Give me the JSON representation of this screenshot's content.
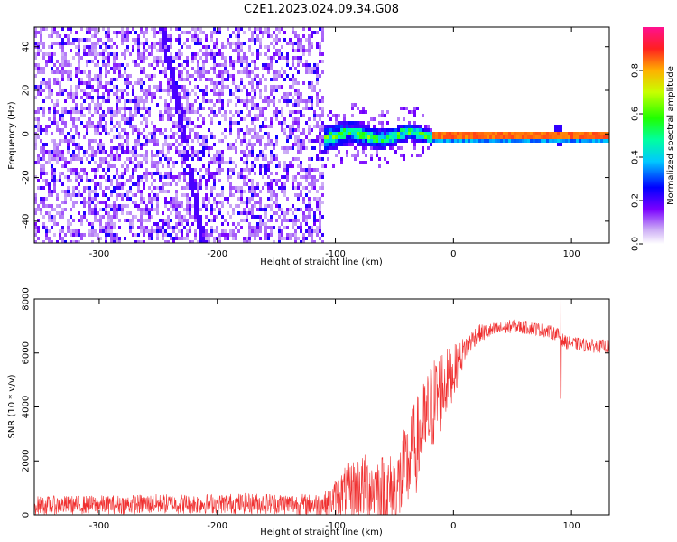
{
  "title": "C2E1.2023.024.09.34.G08",
  "chart_data": [
    {
      "type": "heatmap",
      "xlabel": "Height of straight line (km)",
      "ylabel": "Frequency (Hz)",
      "xlim": [
        -355,
        132
      ],
      "ylim": [
        -50,
        49
      ],
      "xticks": [
        -300,
        -200,
        -100,
        0,
        100
      ],
      "xtick_labels": [
        "-300",
        "-200",
        "-100",
        "0",
        "100"
      ],
      "yticks": [
        -40,
        -20,
        0,
        20,
        40
      ],
      "ytick_labels": [
        "-40",
        "-20",
        "0",
        "20",
        "40"
      ],
      "colorbar": {
        "label": "Normalized spectral amplitude",
        "range": [
          0,
          1
        ],
        "ticks": [
          0.0,
          0.2,
          0.4,
          0.6,
          0.8
        ],
        "tick_labels": [
          "0.0",
          "0.2",
          "0.4",
          "0.6",
          "0.8"
        ]
      },
      "description_regions": [
        {
          "x_range": [
            -355,
            -110
          ],
          "frequency_spread": [
            -50,
            49
          ],
          "amplitude": 0.1
        },
        {
          "x_range": [
            -110,
            -20
          ],
          "frequency_center": 0,
          "frequency_halfwidth": 6,
          "amplitude": 0.35
        },
        {
          "x_range": [
            -20,
            132
          ],
          "frequency_center": 0,
          "frequency_halfwidth": 1,
          "amplitude": 0.85
        }
      ]
    },
    {
      "type": "line",
      "xlabel": "Height of straight line (km)",
      "ylabel": "SNR (10 * v/v)",
      "xlim": [
        -355,
        132
      ],
      "ylim": [
        0,
        8000
      ],
      "xticks": [
        -300,
        -200,
        -100,
        0,
        100
      ],
      "xtick_labels": [
        "-300",
        "-200",
        "-100",
        "0",
        "100"
      ],
      "yticks": [
        0,
        2000,
        4000,
        6000,
        8000
      ],
      "ytick_labels": [
        "0",
        "2000",
        "4000",
        "6000",
        "8000"
      ],
      "series": [
        {
          "color": "#f03030",
          "x": [
            -355,
            -300,
            -250,
            -200,
            -150,
            -120,
            -105,
            -100,
            -90,
            -80,
            -70,
            -60,
            -50,
            -45,
            -40,
            -35,
            -30,
            -25,
            -20,
            -15,
            -10,
            -5,
            0,
            5,
            10,
            20,
            30,
            40,
            50,
            60,
            70,
            80,
            88,
            92,
            95,
            100,
            110,
            120,
            132
          ],
          "y": [
            350,
            380,
            400,
            420,
            420,
            380,
            450,
            650,
            900,
            1050,
            1000,
            900,
            800,
            1200,
            1700,
            2200,
            2700,
            3200,
            3800,
            4300,
            4700,
            5000,
            5300,
            5700,
            6200,
            6700,
            6800,
            6900,
            7000,
            6950,
            6900,
            6800,
            6700,
            6500,
            6400,
            6350,
            6300,
            6250,
            6250
          ],
          "noise": [
            350,
            350,
            380,
            380,
            400,
            400,
            500,
            700,
            1000,
            1200,
            1300,
            1400,
            1500,
            1600,
            1700,
            1800,
            1800,
            1800,
            1800,
            1700,
            1600,
            1200,
            1000,
            700,
            500,
            350,
            300,
            250,
            250,
            250,
            250,
            250,
            250,
            250,
            250,
            250,
            250,
            250,
            250
          ]
        }
      ]
    }
  ]
}
